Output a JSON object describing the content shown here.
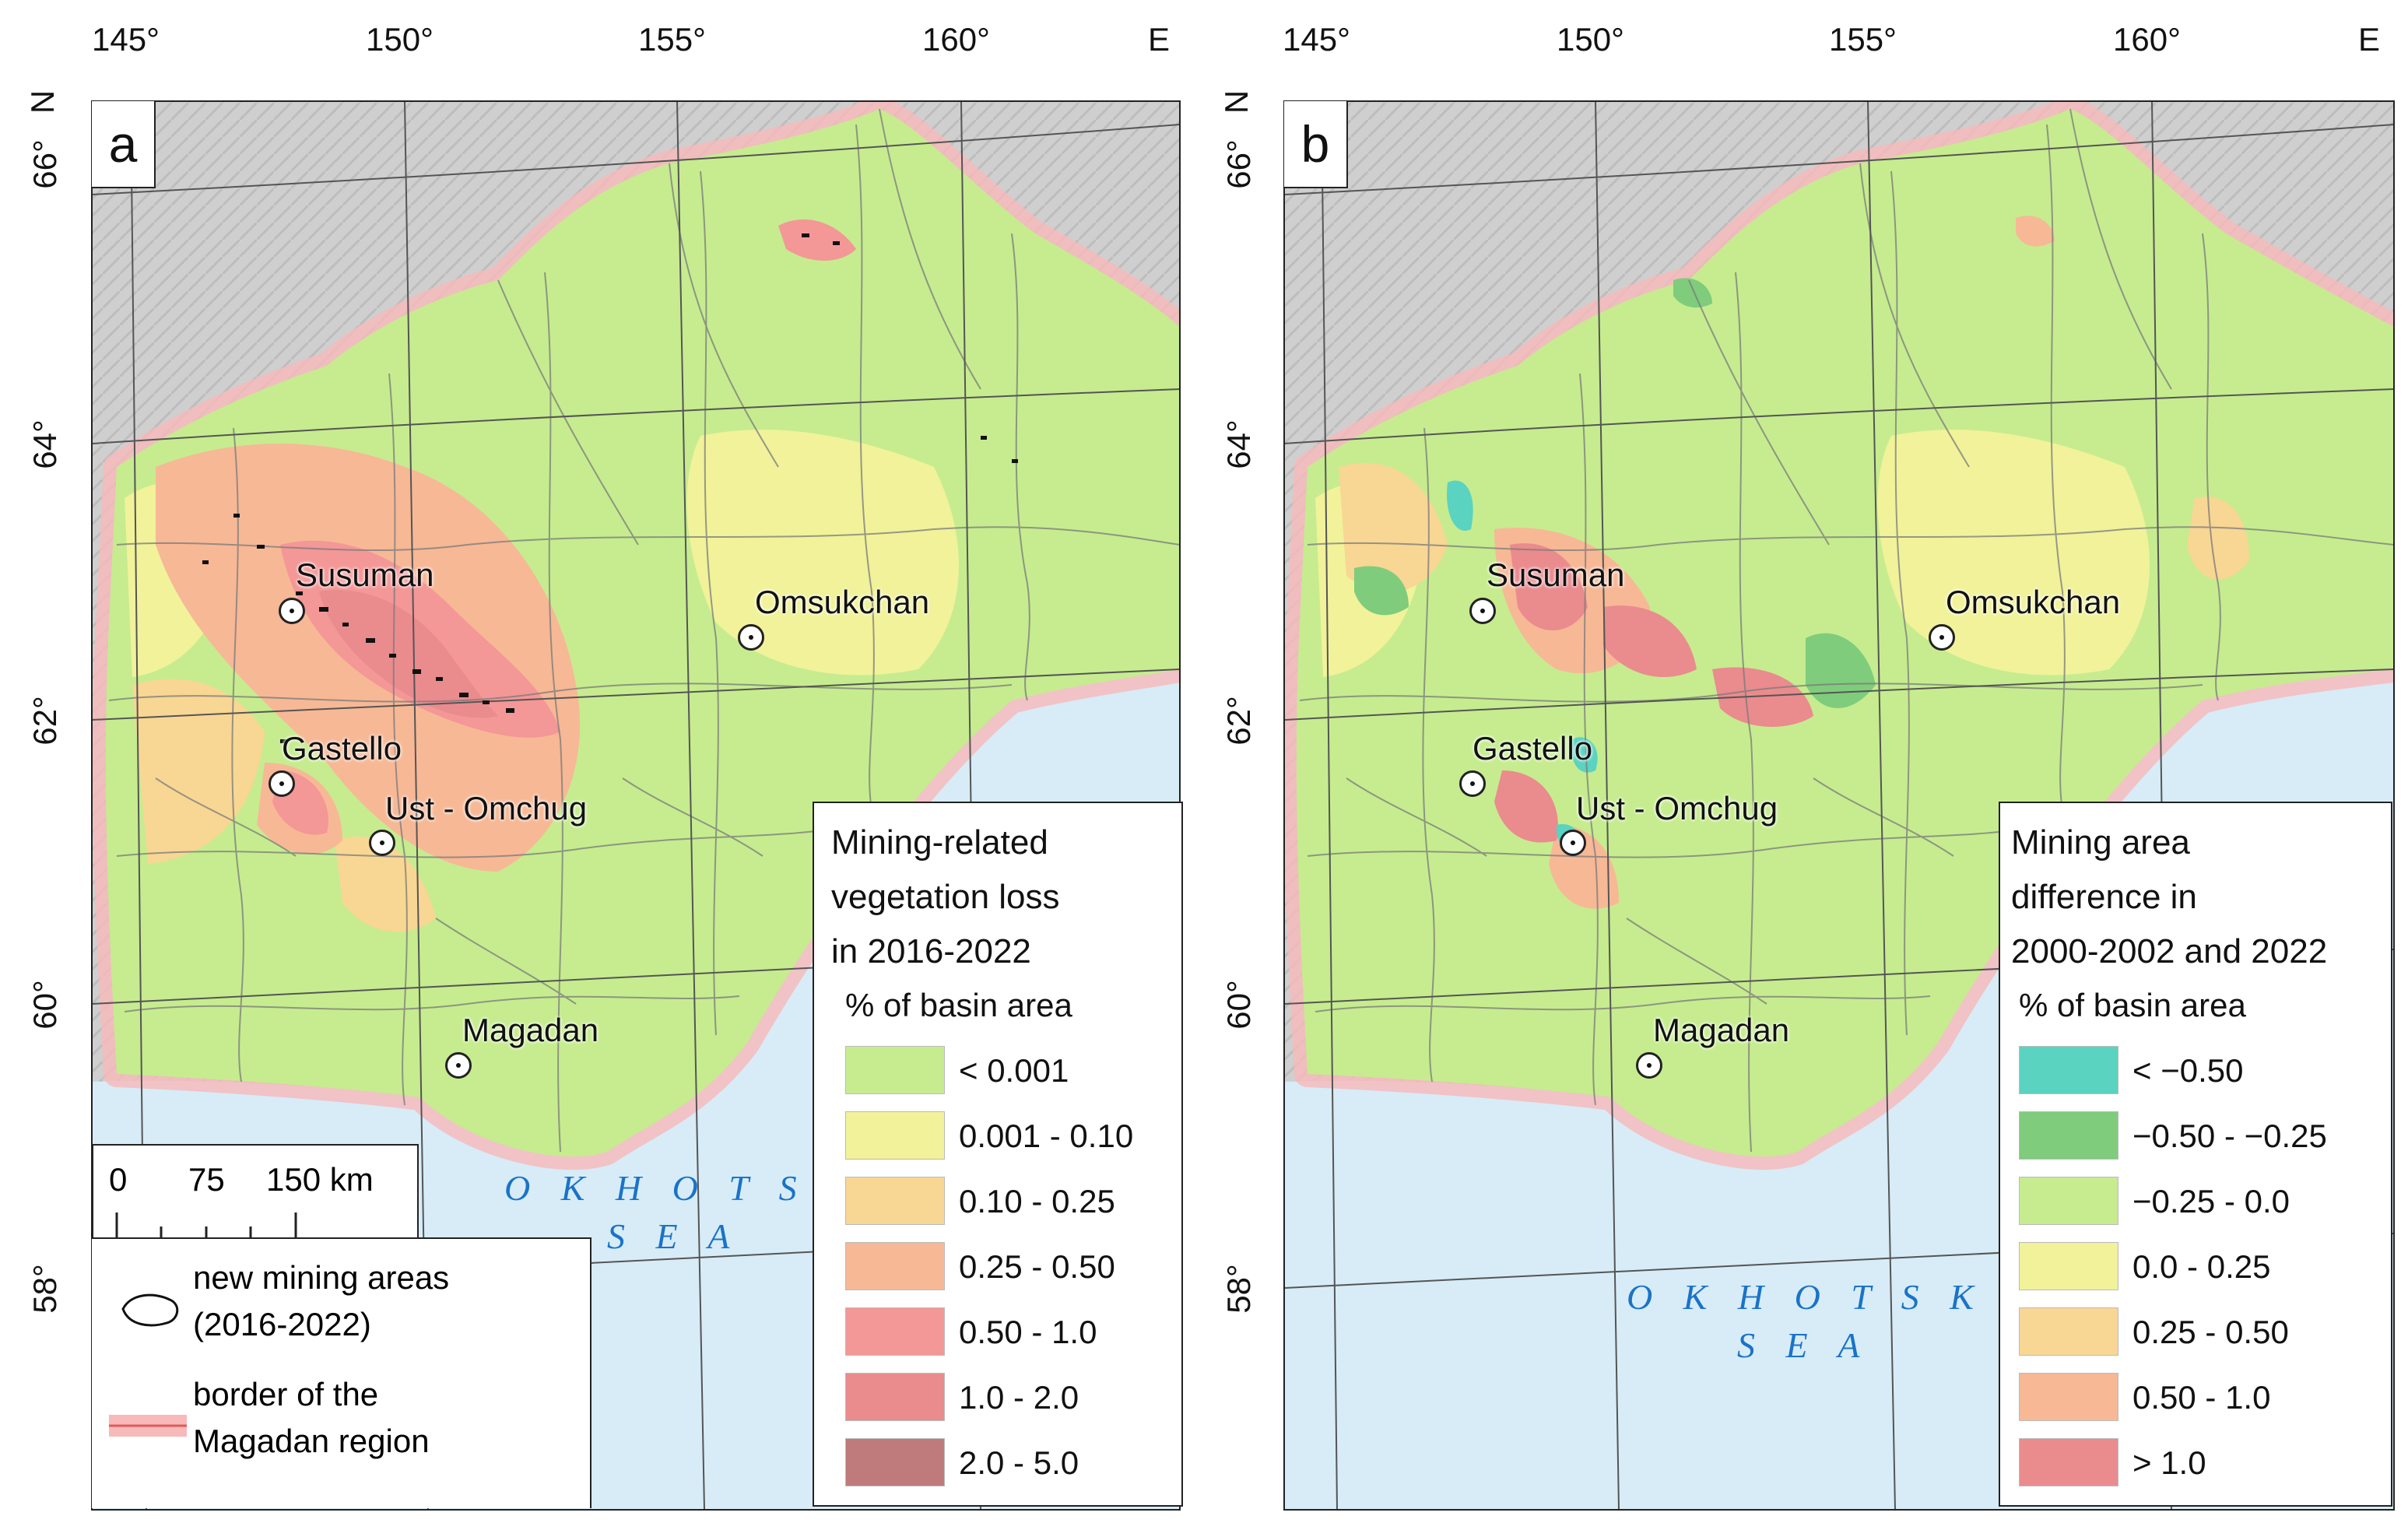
{
  "panels": [
    {
      "letter": "a",
      "lon_labels": [
        "145°",
        "150°",
        "155°",
        "160°",
        "E"
      ],
      "lat_labels": [
        "66°",
        "N",
        "64°",
        "62°",
        "60°",
        "58°"
      ],
      "cities": [
        "Susuman",
        "Omsukchan",
        "Gastello",
        "Ust - Omchug",
        "Magadan"
      ],
      "sea": [
        "O K H O T S K",
        "S E A"
      ],
      "legend": {
        "title_lines": [
          "Mining-related",
          "vegetation loss",
          "in 2016-2022"
        ],
        "subtitle": "% of basin area",
        "classes": [
          {
            "label": "< 0.001",
            "color": "#c6ec8f"
          },
          {
            "label": "0.001 - 0.10",
            "color": "#f1f29a"
          },
          {
            "label": "0.10 - 0.25",
            "color": "#f8d694"
          },
          {
            "label": "0.25 - 0.50",
            "color": "#f7b896"
          },
          {
            "label": "0.50 - 1.0",
            "color": "#f49797"
          },
          {
            "label": "1.0 - 2.0",
            "color": "#ea8b8e"
          },
          {
            "label": "2.0 - 5.0",
            "color": "#bf7b7b"
          }
        ]
      },
      "scale": {
        "ticks": [
          "0",
          "75",
          "150 km"
        ],
        "items": [
          {
            "label_lines": [
              "new mining areas",
              "(2016-2022)"
            ],
            "icon": "mining-area-outline-icon"
          },
          {
            "label_lines": [
              "border of the",
              "Magadan region"
            ],
            "icon": "region-border-icon"
          }
        ]
      }
    },
    {
      "letter": "b",
      "lon_labels": [
        "145°",
        "150°",
        "155°",
        "160°",
        "E"
      ],
      "lat_labels": [
        "66°",
        "N",
        "64°",
        "62°",
        "60°",
        "58°"
      ],
      "cities": [
        "Susuman",
        "Omsukchan",
        "Gastello",
        "Ust - Omchug",
        "Magadan"
      ],
      "sea": [
        "O K H O T S K",
        "S E A"
      ],
      "legend": {
        "title_lines": [
          "Mining area",
          "difference in",
          "2000-2002 and 2022"
        ],
        "subtitle": "% of basin area",
        "classes": [
          {
            "label": "< −0.50",
            "color": "#5ad3c0"
          },
          {
            "label": "−0.50 - −0.25",
            "color": "#7fcc7c"
          },
          {
            "label": "−0.25 - 0.0",
            "color": "#c6ec8f"
          },
          {
            "label": "0.0 - 0.25",
            "color": "#f1f29a"
          },
          {
            "label": "0.25 - 0.50",
            "color": "#f8d694"
          },
          {
            "label": "0.50 - 1.0",
            "color": "#f7b896"
          },
          {
            "label": "> 1.0",
            "color": "#ea8b8e"
          }
        ]
      }
    }
  ],
  "colors": {
    "sea": "#d7ecf7",
    "land_relief": "#cfcfcf",
    "region_border": "#f7b9b9",
    "basin_lines": "#7a7a7a",
    "graticule": "#555555",
    "sea_label": "#1a73c7"
  }
}
